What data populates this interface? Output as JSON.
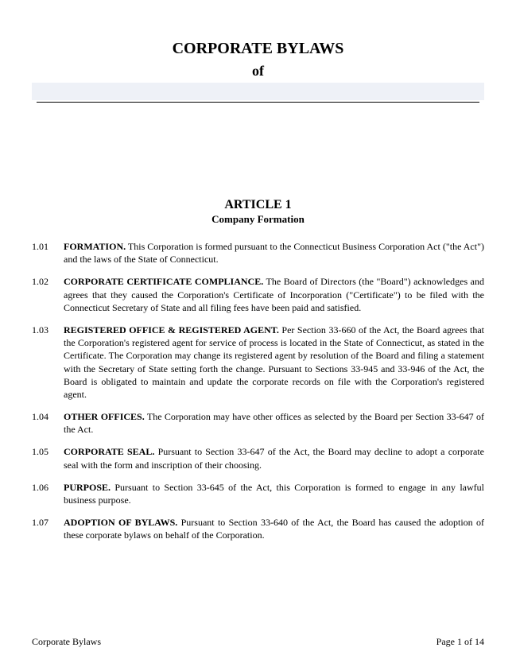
{
  "header": {
    "main_title": "CORPORATE BYLAWS",
    "of_label": "of"
  },
  "article": {
    "number_label": "ARTICLE 1",
    "subtitle": "Company Formation"
  },
  "sections": [
    {
      "num": "1.01",
      "head": "FORMATION.",
      "body": "This Corporation is formed pursuant to the Connecticut Business Corporation Act (\"the Act\") and the laws of the State of Connecticut."
    },
    {
      "num": "1.02",
      "head": "CORPORATE CERTIFICATE COMPLIANCE.",
      "body": "The Board of Directors (the \"Board\") acknowledges and agrees that they caused the Corporation's Certificate of Incorporation (\"Certificate\") to be filed with the Connecticut Secretary of State and all filing fees have been paid and satisfied."
    },
    {
      "num": "1.03",
      "head": "REGISTERED OFFICE & REGISTERED AGENT.",
      "body": "Per Section 33-660 of the Act, the Board agrees that the Corporation's registered agent for service of process is located in the State of Connecticut, as stated in the Certificate. The Corporation may change its registered agent by resolution of the Board and filing a statement with the Secretary of State setting forth the change. Pursuant to Sections 33-945 and 33-946 of the Act, the Board is obligated to maintain and update the corporate records on file with the Corporation's registered agent."
    },
    {
      "num": "1.04",
      "head": "OTHER OFFICES.",
      "body": "The Corporation may have other offices as selected by the Board per Section 33-647 of the Act."
    },
    {
      "num": "1.05",
      "head": "CORPORATE SEAL.",
      "body": "Pursuant to Section 33-647 of the Act, the Board may decline to adopt a corporate seal with the form and inscription of their choosing."
    },
    {
      "num": "1.06",
      "head": "PURPOSE.",
      "body": "Pursuant to Section 33-645 of the Act, this Corporation is formed to engage in any lawful business purpose."
    },
    {
      "num": "1.07",
      "head": "ADOPTION OF BYLAWS.",
      "body": "Pursuant to Section 33-640 of the Act, the Board has caused the adoption of these corporate bylaws on behalf of the Corporation."
    }
  ],
  "footer": {
    "left": "Corporate Bylaws",
    "right": "Page 1 of 14"
  },
  "colors": {
    "name_field_bg": "#eef1f7",
    "text": "#000000",
    "page_bg": "#ffffff"
  }
}
